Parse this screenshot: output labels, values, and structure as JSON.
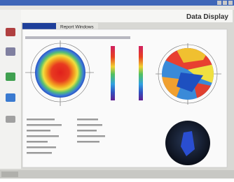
{
  "header": {
    "title": "Data Display"
  },
  "tab": {
    "label": "Report Windows"
  }
}
